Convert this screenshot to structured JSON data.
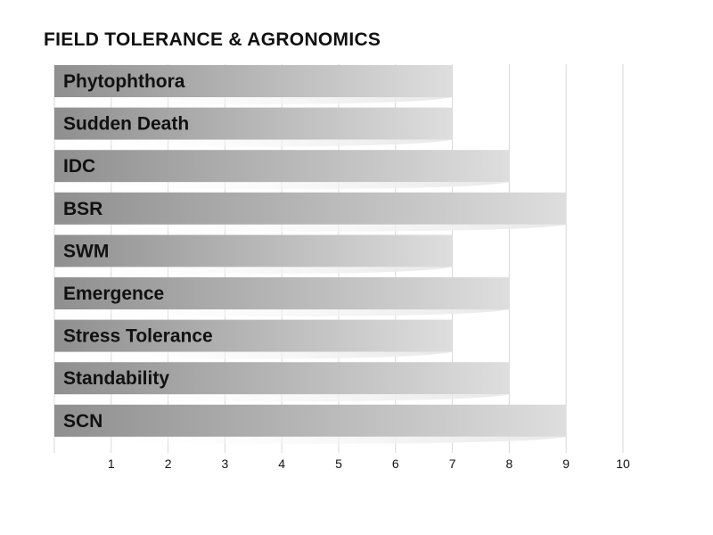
{
  "chart_data": {
    "type": "bar",
    "orientation": "horizontal",
    "title": "FIELD TOLERANCE & AGRONOMICS",
    "categories": [
      "Phytophthora",
      "Sudden Death",
      "IDC",
      "BSR",
      "SWM",
      "Emergence",
      "Stress Tolerance",
      "Standability",
      "SCN"
    ],
    "values": [
      7,
      7,
      8,
      9,
      7,
      8,
      7,
      8,
      9
    ],
    "xlim": [
      0,
      10
    ],
    "x_ticks": [
      "1",
      "2",
      "3",
      "4",
      "5",
      "6",
      "7",
      "8",
      "9",
      "10"
    ],
    "grid": true,
    "legend": "none",
    "colors": {
      "bar_dark": "#8f8f8f",
      "bar_light": "#dedede",
      "grid": "#d9d9d9",
      "text": "#111111"
    }
  }
}
